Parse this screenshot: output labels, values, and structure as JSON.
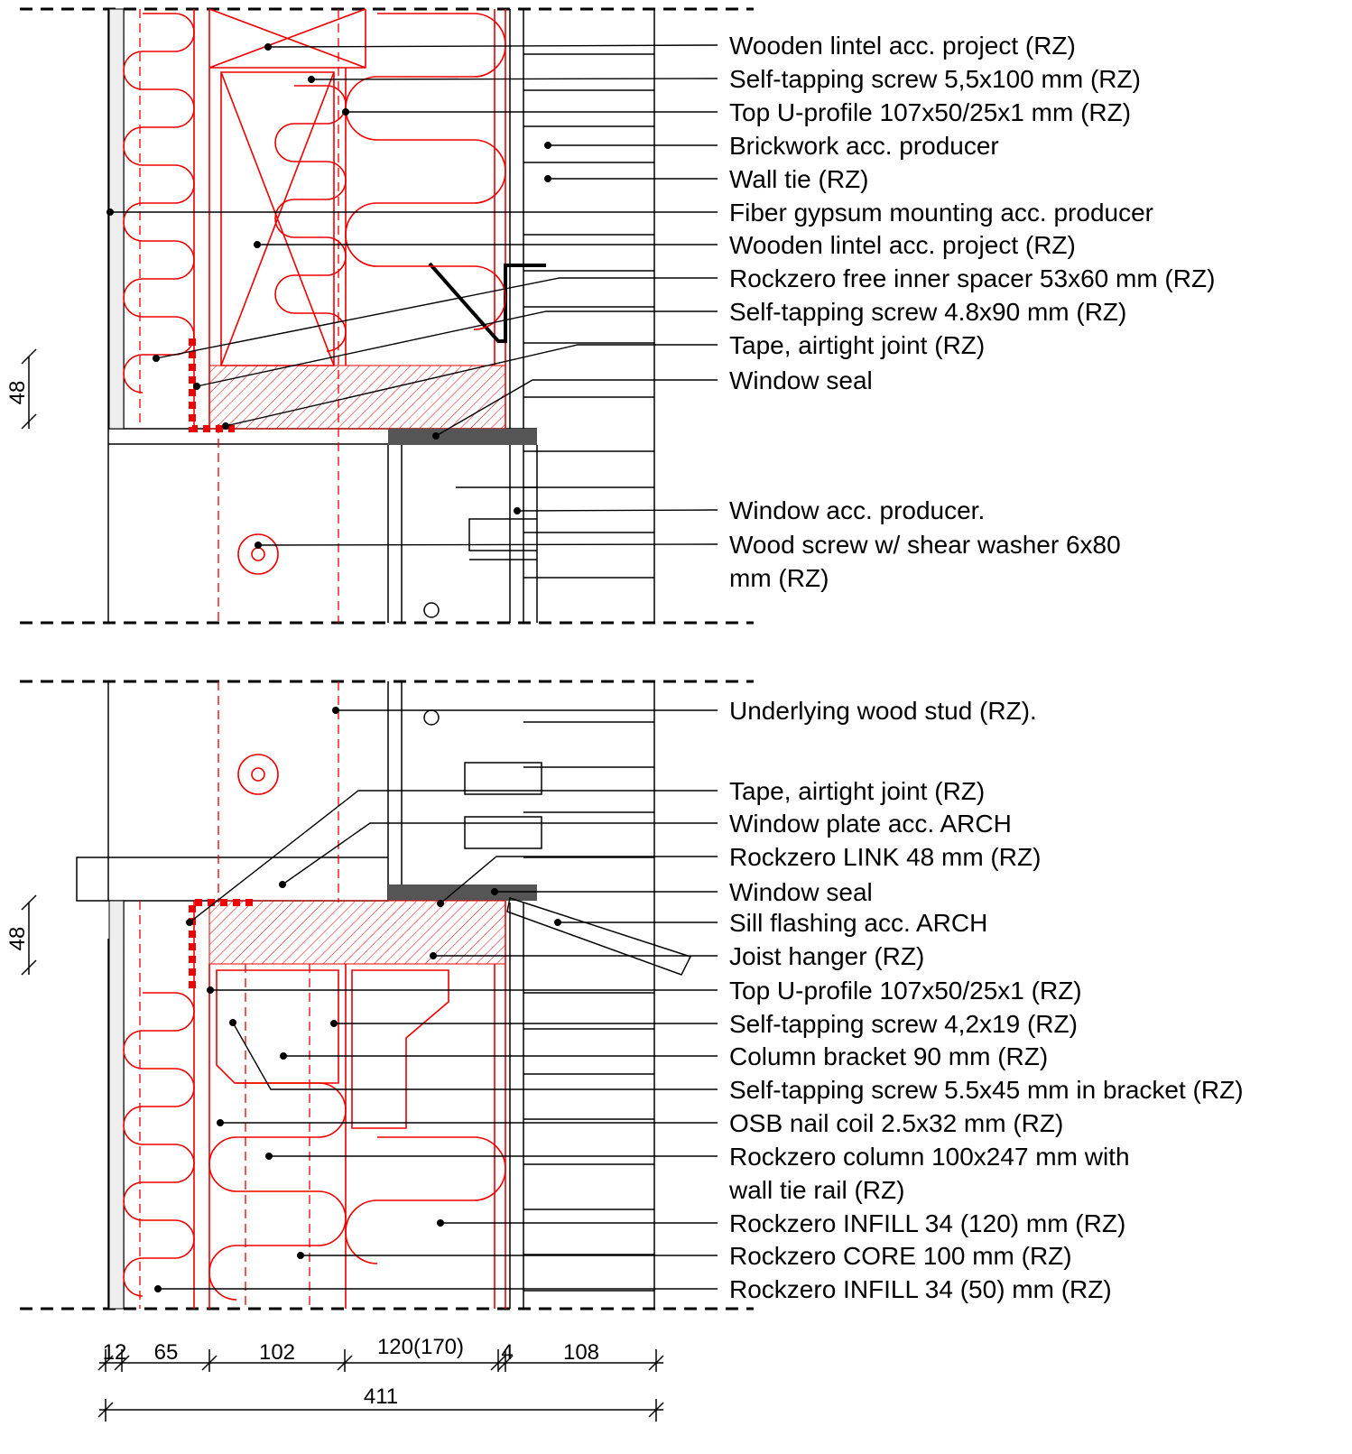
{
  "top": {
    "labels": [
      "Wooden lintel acc. project (RZ)",
      "Self-tapping screw 5,5x100 mm (RZ)",
      "Top U-profile 107x50/25x1 mm (RZ)",
      "Brickwork acc. producer",
      "Wall tie (RZ)",
      "Fiber gypsum mounting acc. producer",
      "Wooden lintel acc. project (RZ)",
      "Rockzero free inner spacer 53x60 mm (RZ)",
      "Self-tapping screw 4.8x90 mm (RZ)",
      "Tape, airtight joint (RZ)",
      "Window seal",
      "Window acc. producer.",
      [
        "Wood screw w/ shear washer 6x80",
        "mm (RZ)"
      ]
    ]
  },
  "bottom": {
    "labels": [
      "Underlying wood stud (RZ).",
      "Tape, airtight joint (RZ)",
      "Window plate acc. ARCH",
      "Rockzero LINK 48 mm (RZ)",
      "Window seal",
      "Sill flashing acc. ARCH",
      "Joist hanger (RZ)",
      "Top U-profile 107x50/25x1 (RZ)",
      "Self-tapping screw 4,2x19 (RZ)",
      "Column bracket 90 mm (RZ)",
      "Self-tapping screw 5.5x45 mm in  bracket (RZ)",
      "OSB nail coil 2.5x32 mm (RZ)",
      [
        "Rockzero column 100x247 mm with",
        "wall tie rail (RZ)"
      ],
      "Rockzero INFILL 34 (120) mm (RZ)",
      "Rockzero CORE 100 mm (RZ)",
      "Rockzero INFILL 34 (50) mm (RZ)"
    ]
  },
  "dimensions": {
    "heights": [
      "48",
      "48"
    ],
    "widths": [
      "12",
      "65",
      "102",
      "120(170)",
      "4",
      "108"
    ],
    "total": "411"
  }
}
